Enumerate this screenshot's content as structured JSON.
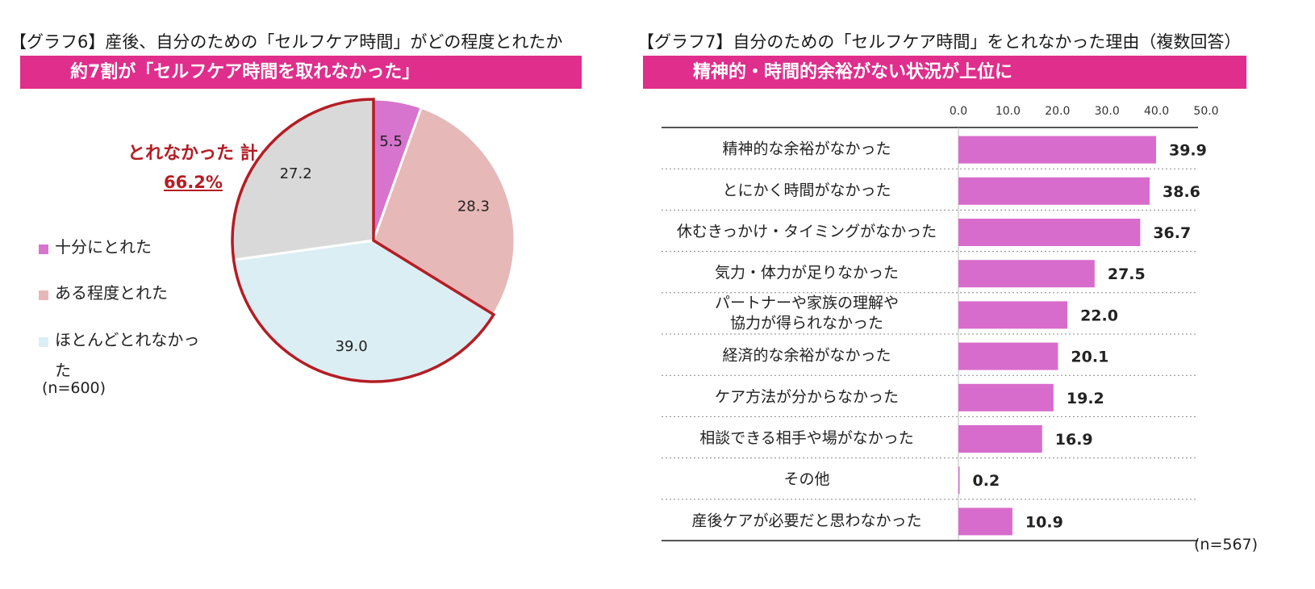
{
  "colors": {
    "banner": "#df2e8c",
    "highlight": "#b41d24",
    "bar": "#d86ccc",
    "slice_sufficient": "#d774cd",
    "slice_somewhat": "#e6b8b7",
    "slice_not_much": "#dbeef4",
    "slice_not_at_all": "#d9d9d9"
  },
  "left": {
    "title": "【グラフ6】産後、自分のための「セルフケア時間」がどの程度とれたか",
    "banner": "約7割が「セルフケア時間を取れなかった」",
    "total_label": "とれなかった 計",
    "total_value": "66.2%",
    "legend": [
      "十分にとれた",
      "ある程度とれた",
      "ほとんどとれなかった"
    ],
    "n_label": "(n=600)"
  },
  "right": {
    "title": "【グラフ7】自分のための「セルフケア時間」をとれなかった理由（複数回答）",
    "banner": "精神的・時間的余裕がない状況が上位に",
    "n_label": "(n=567)"
  },
  "chart_data": [
    {
      "type": "pie",
      "slices": [
        {
          "label": "十分にとれた",
          "value": 5.5,
          "color": "#d774cd"
        },
        {
          "label": "ある程度とれた",
          "value": 28.3,
          "color": "#e6b8b7"
        },
        {
          "label": "ほとんどとれなかった",
          "value": 39.0,
          "color": "#dbeef4"
        },
        {
          "label": "",
          "value": 27.2,
          "color": "#d9d9d9"
        }
      ],
      "data_labels": [
        "5.5",
        "28.3",
        "39.0",
        "27.2"
      ],
      "legend_position": "left"
    },
    {
      "type": "bar",
      "orientation": "horizontal",
      "categories": [
        "精神的な余裕がなかった",
        "とにかく時間がなかった",
        "休むきっかけ・タイミングがなかった",
        "気力・体力が足りなかった",
        "パートナーや家族の理解や協力が得られなかった",
        "経済的な余裕がなかった",
        "ケア方法が分からなかった",
        "相談できる相手や場がなかった",
        "その他",
        "産後ケアが必要だと思わなかった"
      ],
      "values": [
        39.9,
        38.6,
        36.7,
        27.5,
        22.0,
        20.1,
        19.2,
        16.9,
        0.2,
        10.9
      ],
      "value_labels": [
        "39.9",
        "38.6",
        "36.7",
        "27.5",
        "22.0",
        "20.1",
        "19.2",
        "16.9",
        "0.2",
        "10.9"
      ],
      "xlim": [
        0,
        50
      ],
      "x_ticks": [
        "0.0",
        "10.0",
        "20.0",
        "30.0",
        "40.0",
        "50.0"
      ]
    }
  ]
}
